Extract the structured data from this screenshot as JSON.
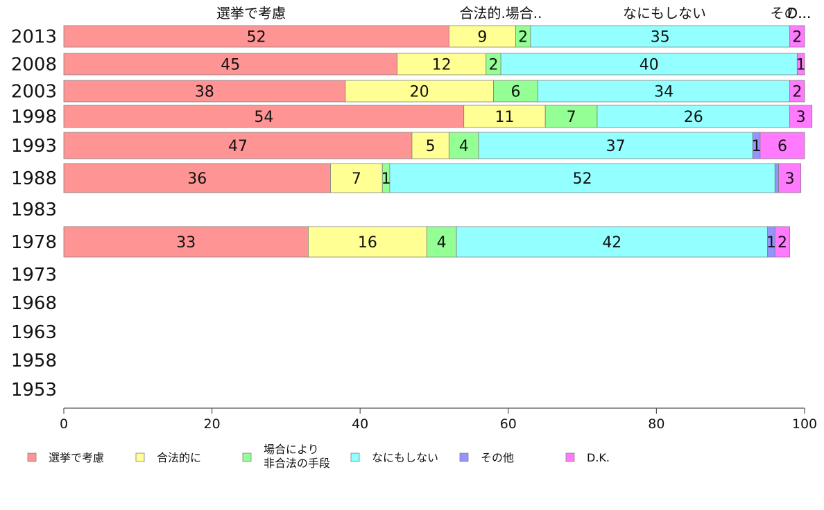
{
  "chart_data": {
    "type": "bar",
    "orientation": "horizontal",
    "stacked": true,
    "xlim": [
      0,
      100
    ],
    "xticks": [
      0,
      20,
      40,
      60,
      80,
      100
    ],
    "categories": [
      "2013",
      "2008",
      "2003",
      "1998",
      "1993",
      "1988",
      "1983",
      "1978",
      "1973",
      "1968",
      "1963",
      "1958",
      "1953"
    ],
    "top_labels": [
      "選挙で考慮",
      "合法的.場合..",
      "なにもしない",
      "その...",
      "D..."
    ],
    "series": [
      {
        "name": "選挙で考慮",
        "color": "#ff9494",
        "values": [
          52,
          45,
          38,
          54,
          47,
          36,
          null,
          33,
          null,
          null,
          null,
          null,
          null
        ]
      },
      {
        "name": "合法的に",
        "color": "#ffff94",
        "values": [
          9,
          12,
          20,
          11,
          5,
          7,
          null,
          16,
          null,
          null,
          null,
          null,
          null
        ]
      },
      {
        "name": "場合により\n非合法の手段",
        "color": "#94ff94",
        "values": [
          2,
          2,
          6,
          7,
          4,
          1,
          null,
          4,
          null,
          null,
          null,
          null,
          null
        ]
      },
      {
        "name": "なにもしない",
        "color": "#94ffff",
        "values": [
          35,
          40,
          34,
          26,
          37,
          52,
          null,
          42,
          null,
          null,
          null,
          null,
          null
        ]
      },
      {
        "name": "その他",
        "color": "#9494ff",
        "values": [
          0,
          0,
          0,
          0,
          1,
          0.5,
          null,
          1,
          null,
          null,
          null,
          null,
          null
        ]
      },
      {
        "name": "D.K.",
        "color": "#ff7aff",
        "values": [
          2,
          1,
          2,
          3,
          6,
          3,
          null,
          2,
          null,
          null,
          null,
          null,
          null
        ]
      }
    ],
    "segment_labels": [
      [
        "52",
        "9",
        "2",
        "35",
        "",
        "2"
      ],
      [
        "45",
        "12",
        "2",
        "40",
        "",
        "1"
      ],
      [
        "38",
        "20",
        "6",
        "34",
        "",
        "2"
      ],
      [
        "54",
        "11",
        "7",
        "26",
        "",
        "3"
      ],
      [
        "47",
        "5",
        "4",
        "37",
        "1",
        "6"
      ],
      [
        "36",
        "7",
        "1",
        "52",
        "",
        "3"
      ],
      [
        "",
        "",
        "",
        "",
        "",
        ""
      ],
      [
        "33",
        "16",
        "4",
        "42",
        "1",
        "2"
      ],
      [
        "",
        "",
        "",
        "",
        "",
        ""
      ],
      [
        "",
        "",
        "",
        "",
        "",
        ""
      ],
      [
        "",
        "",
        "",
        "",
        "",
        ""
      ],
      [
        "",
        "",
        "",
        "",
        "",
        ""
      ],
      [
        "",
        "",
        "",
        "",
        "",
        ""
      ]
    ],
    "legend_position": "bottom"
  }
}
